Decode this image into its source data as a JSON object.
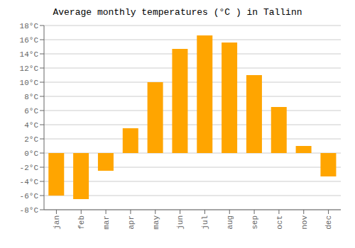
{
  "chart_data": {
    "type": "bar",
    "title": "Average monthly temperatures (°C ) in Tallinn",
    "categories": [
      "jan",
      "feb",
      "mar",
      "apr",
      "may",
      "jun",
      "jul",
      "aug",
      "sep",
      "oct",
      "nov",
      "dec"
    ],
    "values": [
      -6.0,
      -6.5,
      -2.5,
      3.5,
      10.0,
      14.7,
      16.6,
      15.6,
      11.0,
      6.5,
      1.0,
      -3.3
    ],
    "color": "#FFA500",
    "ylim": [
      -8,
      18
    ],
    "yticks": [
      {
        "value": -8,
        "label": "-8°C"
      },
      {
        "value": -6,
        "label": "-6°C"
      },
      {
        "value": -4,
        "label": "-4°C"
      },
      {
        "value": -2,
        "label": "-2°C"
      },
      {
        "value": 0,
        "label": "0°C"
      },
      {
        "value": 2,
        "label": "2°C"
      },
      {
        "value": 4,
        "label": "4°C"
      },
      {
        "value": 6,
        "label": "6°C"
      },
      {
        "value": 8,
        "label": "8°C"
      },
      {
        "value": 10,
        "label": "10°C"
      },
      {
        "value": 12,
        "label": "12°C"
      },
      {
        "value": 14,
        "label": "14°C"
      },
      {
        "value": 16,
        "label": "16°C"
      },
      {
        "value": 18,
        "label": "18°C"
      }
    ],
    "grid": true
  }
}
